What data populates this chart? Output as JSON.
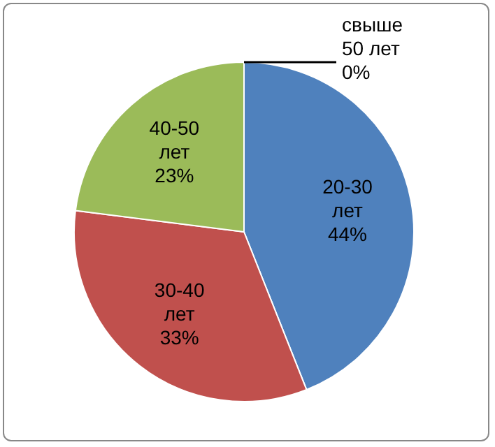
{
  "chart_data": {
    "type": "pie",
    "categories": [
      "20-30 лет",
      "30-40 лет",
      "40-50 лет",
      "свыше 50 лет"
    ],
    "values": [
      44,
      33,
      23,
      0
    ],
    "colors": [
      "#4f81bd",
      "#c0504d",
      "#9bbb59",
      "#8064a2"
    ],
    "value_labels": [
      "44%",
      "33%",
      "23%",
      "0%"
    ]
  }
}
